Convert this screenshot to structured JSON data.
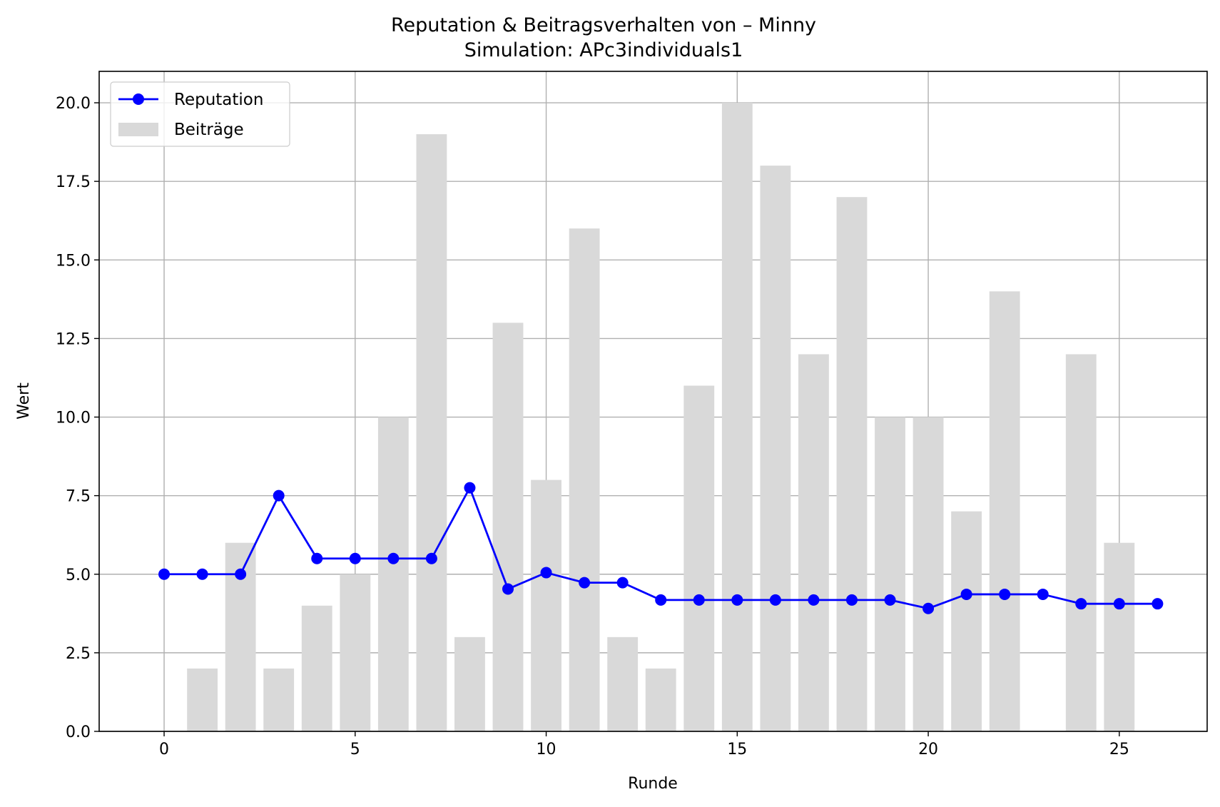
{
  "chart_data": {
    "type": "bar",
    "title": "Reputation & Beitragsverhalten von – Minny",
    "subtitle": "Simulation: APc3individuals1",
    "xlabel": "Runde",
    "ylabel": "Wert",
    "xlim": [
      -1.7,
      27.3
    ],
    "ylim": [
      0,
      21
    ],
    "xticks": [
      0,
      5,
      10,
      15,
      20,
      25
    ],
    "xtick_labels": [
      "0",
      "5",
      "10",
      "15",
      "20",
      "25"
    ],
    "yticks": [
      0,
      2.5,
      5,
      7.5,
      10,
      12.5,
      15,
      17.5,
      20
    ],
    "ytick_labels": [
      "0.0",
      "2.5",
      "5.0",
      "7.5",
      "10.0",
      "12.5",
      "15.0",
      "17.5",
      "20.0"
    ],
    "grid": true,
    "legend_position": "upper-left",
    "series": [
      {
        "name": "Reputation",
        "kind": "line",
        "marker": "circle",
        "color": "#0000ff",
        "x": [
          0,
          1,
          2,
          3,
          4,
          5,
          6,
          7,
          8,
          9,
          10,
          11,
          12,
          13,
          14,
          15,
          16,
          17,
          18,
          19,
          20,
          21,
          22,
          23,
          24,
          25,
          26
        ],
        "values": [
          5.0,
          5.0,
          5.0,
          7.5,
          5.5,
          5.5,
          5.5,
          5.5,
          7.75,
          4.53,
          5.05,
          4.73,
          4.73,
          4.18,
          4.18,
          4.18,
          4.18,
          4.18,
          4.18,
          4.18,
          3.91,
          4.36,
          4.36,
          4.36,
          4.06,
          4.06,
          4.06
        ]
      },
      {
        "name": "Beiträge",
        "kind": "bar",
        "color": "#d9d9d9",
        "x": [
          0,
          1,
          2,
          3,
          4,
          5,
          6,
          7,
          8,
          9,
          10,
          11,
          12,
          13,
          14,
          15,
          16,
          17,
          18,
          19,
          20,
          21,
          22,
          23,
          24,
          25
        ],
        "values": [
          0,
          2,
          6,
          2,
          4,
          5,
          10,
          19,
          3,
          13,
          8,
          16,
          3,
          2,
          11,
          20,
          18,
          12,
          17,
          10,
          10,
          7,
          14,
          0,
          12,
          6
        ]
      }
    ]
  }
}
